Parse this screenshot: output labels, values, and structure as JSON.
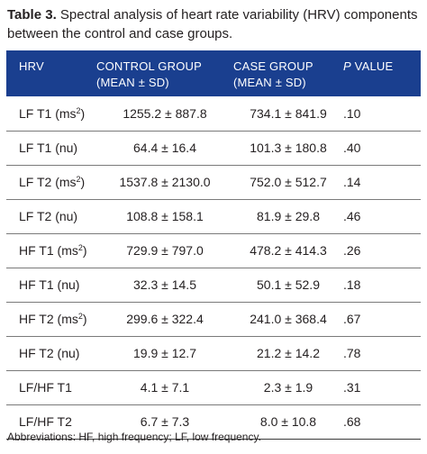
{
  "caption": {
    "label": "Table 3.",
    "text": "Spectral analysis of heart rate variability (HRV) components between the control and case groups."
  },
  "header": {
    "hrv": "HRV",
    "control_line1": "CONTROL GROUP",
    "control_line2": "(MEAN ± SD)",
    "case_line1": "CASE GROUP",
    "case_line2": "(MEAN ± SD)",
    "p_italic": "P",
    "p_rest": " VALUE"
  },
  "rows": [
    {
      "label": "LF T1 (ms",
      "sup": "2",
      "close": ")",
      "control": "1255.2 ± 887.8",
      "case": "734.1 ± 841.9",
      "p": ".10"
    },
    {
      "label": "LF T1 (nu)",
      "sup": "",
      "close": "",
      "control": "64.4 ± 16.4",
      "case": "101.3 ± 180.8",
      "p": ".40"
    },
    {
      "label": "LF T2 (ms",
      "sup": "2",
      "close": ")",
      "control": "1537.8 ± 2130.0",
      "case": "752.0 ± 512.7",
      "p": ".14"
    },
    {
      "label": "LF T2 (nu)",
      "sup": "",
      "close": "",
      "control": "108.8 ± 158.1",
      "case": "81.9 ± 29.8",
      "p": ".46"
    },
    {
      "label": "HF T1 (ms",
      "sup": "2",
      "close": ")",
      "control": "729.9 ± 797.0",
      "case": "478.2 ± 414.3",
      "p": ".26"
    },
    {
      "label": "HF T1 (nu)",
      "sup": "",
      "close": "",
      "control": "32.3 ± 14.5",
      "case": "50.1 ± 52.9",
      "p": ".18"
    },
    {
      "label": "HF T2 (ms",
      "sup": "2",
      "close": ")",
      "control": "299.6 ± 322.4",
      "case": "241.0 ± 368.4",
      "p": ".67"
    },
    {
      "label": "HF T2 (nu)",
      "sup": "",
      "close": "",
      "control": "19.9 ± 12.7",
      "case": "21.2 ± 14.2",
      "p": ".78"
    },
    {
      "label": "LF/HF T1",
      "sup": "",
      "close": "",
      "control": "4.1 ± 7.1",
      "case": "2.3 ± 1.9",
      "p": ".31"
    },
    {
      "label": "LF/HF T2",
      "sup": "",
      "close": "",
      "control": "6.7 ± 7.3",
      "case": "8.0 ± 10.8",
      "p": ".68"
    }
  ],
  "footnote": "Abbreviations: HF, high frequency; LF, low frequency.",
  "colors": {
    "header_bg": "#1a3f8f",
    "header_text": "#ffffff",
    "text": "#231f20"
  }
}
